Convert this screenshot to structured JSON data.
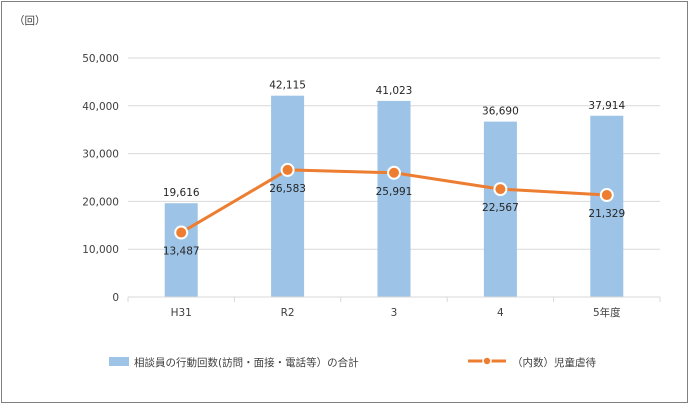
{
  "chart_data": {
    "type": "bar",
    "unit_label": "（回）",
    "categories": [
      "H31",
      "R2",
      "3",
      "4",
      "5年度"
    ],
    "ylim": [
      0,
      50000
    ],
    "yticks": [
      0,
      10000,
      20000,
      30000,
      40000,
      50000
    ],
    "ytick_labels": [
      "0",
      "10,000",
      "20,000",
      "30,000",
      "40,000",
      "50,000"
    ],
    "grid": true,
    "legend_position": "bottom",
    "series": [
      {
        "name": "相談員の行動回数(訪問・面接・電話等）の合計",
        "type": "bar",
        "color": "#9dc3e6",
        "values": [
          19616,
          42115,
          41023,
          36690,
          37914
        ],
        "labels": [
          "19,616",
          "42,115",
          "41,023",
          "36,690",
          "37,914"
        ]
      },
      {
        "name": "（内数）児童虐待",
        "type": "line",
        "color": "#ed7d31",
        "values": [
          13487,
          26583,
          25991,
          22567,
          21329
        ],
        "labels": [
          "13,487",
          "26,583",
          "25,991",
          "22,567",
          "21,329"
        ]
      }
    ]
  }
}
